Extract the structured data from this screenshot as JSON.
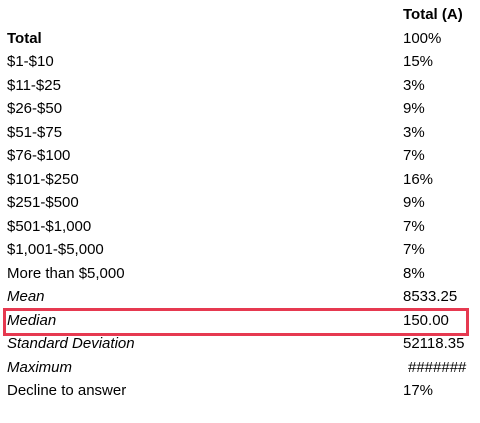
{
  "table": {
    "header": "Total (A)",
    "rows": [
      [
        "Total",
        "100%"
      ],
      [
        "$1-$10",
        "15%"
      ],
      [
        "$11-$25",
        "3%"
      ],
      [
        "$26-$50",
        "9%"
      ],
      [
        "$51-$75",
        "3%"
      ],
      [
        "$76-$100",
        "7%"
      ],
      [
        "$101-$250",
        "16%"
      ],
      [
        "$251-$500",
        "9%"
      ],
      [
        "$501-$1,000",
        "7%"
      ],
      [
        "$1,001-$5,000",
        "7%"
      ],
      [
        "More than $5,000",
        "8%"
      ],
      [
        "Mean",
        "8533.25"
      ],
      [
        "Median",
        "150.00"
      ],
      [
        "Standard Deviation",
        "52118.35"
      ],
      [
        "Maximum",
        "#######"
      ],
      [
        "Decline to answer",
        "17%"
      ]
    ]
  }
}
